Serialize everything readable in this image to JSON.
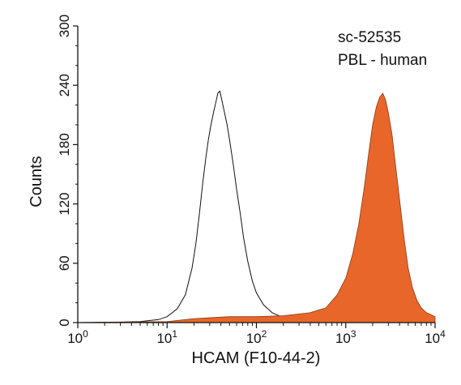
{
  "chart_data": {
    "type": "area",
    "xlabel": "HCAM (F10-44-2)",
    "ylabel": "Counts",
    "x_scale": "log",
    "xlim": [
      1,
      10000
    ],
    "ylim": [
      0,
      300
    ],
    "x_ticks": [
      {
        "value": 1,
        "base": "10",
        "exp": "0"
      },
      {
        "value": 10,
        "base": "10",
        "exp": "1"
      },
      {
        "value": 100,
        "base": "10",
        "exp": "2"
      },
      {
        "value": 1000,
        "base": "10",
        "exp": "3"
      },
      {
        "value": 10000,
        "base": "10",
        "exp": "4"
      }
    ],
    "y_ticks": [
      0,
      60,
      120,
      180,
      240,
      300
    ],
    "annotations": [
      "sc-52535",
      "PBL - human"
    ],
    "grid": false,
    "series": [
      {
        "style": "outline",
        "color": "#111111",
        "points": [
          [
            1,
            0
          ],
          [
            3,
            0.5
          ],
          [
            5,
            1
          ],
          [
            8,
            3
          ],
          [
            10,
            6
          ],
          [
            13,
            14
          ],
          [
            16,
            28
          ],
          [
            19,
            55
          ],
          [
            21,
            80
          ],
          [
            23,
            110
          ],
          [
            25,
            140
          ],
          [
            27,
            165
          ],
          [
            29,
            185
          ],
          [
            31,
            200
          ],
          [
            33,
            212
          ],
          [
            35,
            222
          ],
          [
            37,
            232
          ],
          [
            39,
            234
          ],
          [
            41,
            225
          ],
          [
            44,
            212
          ],
          [
            47,
            200
          ],
          [
            50,
            185
          ],
          [
            55,
            160
          ],
          [
            60,
            135
          ],
          [
            66,
            110
          ],
          [
            72,
            85
          ],
          [
            80,
            62
          ],
          [
            90,
            42
          ],
          [
            100,
            30
          ],
          [
            120,
            18
          ],
          [
            150,
            10
          ],
          [
            200,
            5
          ],
          [
            300,
            2
          ],
          [
            500,
            1
          ],
          [
            1000,
            0.5
          ],
          [
            10000,
            0
          ]
        ]
      },
      {
        "style": "filled",
        "color": "#E8662A",
        "points": [
          [
            1,
            0
          ],
          [
            10,
            1
          ],
          [
            20,
            4
          ],
          [
            50,
            6
          ],
          [
            100,
            6
          ],
          [
            200,
            7
          ],
          [
            400,
            10
          ],
          [
            600,
            15
          ],
          [
            800,
            28
          ],
          [
            1000,
            45
          ],
          [
            1200,
            70
          ],
          [
            1400,
            100
          ],
          [
            1600,
            135
          ],
          [
            1800,
            170
          ],
          [
            2000,
            200
          ],
          [
            2200,
            218
          ],
          [
            2400,
            228
          ],
          [
            2600,
            232
          ],
          [
            2800,
            225
          ],
          [
            3000,
            212
          ],
          [
            3300,
            190
          ],
          [
            3600,
            160
          ],
          [
            4000,
            125
          ],
          [
            4500,
            85
          ],
          [
            5000,
            55
          ],
          [
            5600,
            35
          ],
          [
            6300,
            22
          ],
          [
            7000,
            15
          ],
          [
            8000,
            10
          ],
          [
            9000,
            8
          ],
          [
            10000,
            6
          ]
        ]
      }
    ]
  }
}
